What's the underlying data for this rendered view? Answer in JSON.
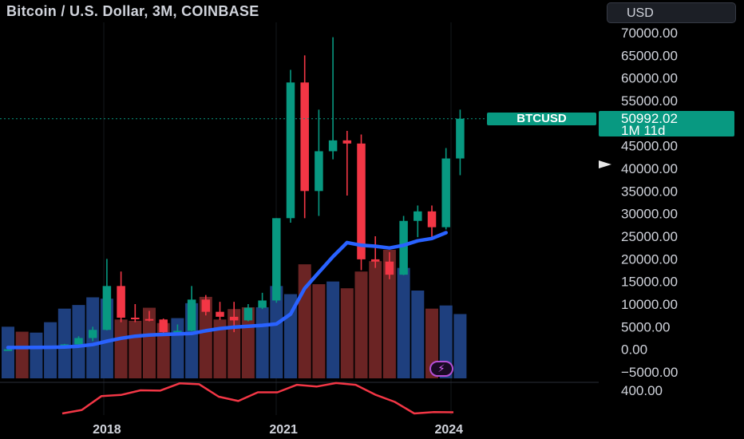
{
  "header": {
    "title": "Bitcoin / U.S. Dollar, 3M, COINBASE",
    "currency": "USD"
  },
  "last_price": {
    "ticker": "BTCUSD",
    "price": "50992.02",
    "countdown": "1M 11d"
  },
  "colors": {
    "up": "#089981",
    "down": "#f23645",
    "ma": "#2962ff",
    "indicator": "#f23645",
    "vol_up": "#1e3f7e",
    "vol_down": "#6b2424"
  },
  "chart_data": [
    {
      "type": "candlestick",
      "ylim": [
        -5000,
        70000
      ],
      "y_ticks": [
        "70000.00",
        "65000.00",
        "60000.00",
        "55000.00",
        "50000.00",
        "45000.00",
        "40000.00",
        "35000.00",
        "30000.00",
        "25000.00",
        "20000.00",
        "15000.00",
        "10000.00",
        "5000.00",
        "0.00",
        "−5000.00"
      ],
      "x_tick_labels": [
        "2018",
        "2021",
        "2024"
      ],
      "candles": [
        {
          "o": 0,
          "h": 0,
          "l": 0,
          "c": 0
        },
        {
          "o": 200,
          "h": 260,
          "l": 180,
          "c": 450
        },
        {
          "o": 430,
          "h": 450,
          "l": 420,
          "c": 560
        },
        {
          "o": 600,
          "h": 800,
          "l": 420,
          "c": 700
        },
        {
          "o": 700,
          "h": 1200,
          "l": 600,
          "c": 1100
        },
        {
          "o": 1100,
          "h": 2900,
          "l": 900,
          "c": 2500
        },
        {
          "o": 2500,
          "h": 5000,
          "l": 1800,
          "c": 4300
        },
        {
          "o": 4300,
          "h": 20000,
          "l": 4200,
          "c": 14000
        },
        {
          "o": 14000,
          "h": 17200,
          "l": 6000,
          "c": 7000
        },
        {
          "o": 7000,
          "h": 10000,
          "l": 6000,
          "c": 6700
        },
        {
          "o": 6700,
          "h": 8500,
          "l": 6200,
          "c": 6600
        },
        {
          "o": 6600,
          "h": 6800,
          "l": 3200,
          "c": 3800
        },
        {
          "o": 3800,
          "h": 5500,
          "l": 3500,
          "c": 4100
        },
        {
          "o": 4100,
          "h": 14000,
          "l": 4000,
          "c": 11000
        },
        {
          "o": 11000,
          "h": 12000,
          "l": 7500,
          "c": 8300
        },
        {
          "o": 8300,
          "h": 10500,
          "l": 6500,
          "c": 7200
        },
        {
          "o": 7200,
          "h": 10500,
          "l": 3800,
          "c": 6400
        },
        {
          "o": 6400,
          "h": 10000,
          "l": 6200,
          "c": 9200
        },
        {
          "o": 9200,
          "h": 12500,
          "l": 8900,
          "c": 10800
        },
        {
          "o": 10800,
          "h": 29000,
          "l": 10300,
          "c": 29000
        },
        {
          "o": 29000,
          "h": 61800,
          "l": 28000,
          "c": 59000
        },
        {
          "o": 59000,
          "h": 65000,
          "l": 29000,
          "c": 35000
        },
        {
          "o": 35000,
          "h": 53000,
          "l": 29500,
          "c": 43800
        },
        {
          "o": 43800,
          "h": 69000,
          "l": 42000,
          "c": 46200
        },
        {
          "o": 46200,
          "h": 48300,
          "l": 34000,
          "c": 45500
        },
        {
          "o": 45500,
          "h": 47500,
          "l": 17500,
          "c": 19900
        },
        {
          "o": 19900,
          "h": 25000,
          "l": 18000,
          "c": 19400
        },
        {
          "o": 19400,
          "h": 21500,
          "l": 15500,
          "c": 16500
        },
        {
          "o": 16500,
          "h": 29500,
          "l": 16400,
          "c": 28400
        },
        {
          "o": 28400,
          "h": 31800,
          "l": 24800,
          "c": 30500
        },
        {
          "o": 30500,
          "h": 31800,
          "l": 24800,
          "c": 27000
        },
        {
          "o": 27000,
          "h": 44500,
          "l": 26500,
          "c": 42200
        },
        {
          "o": 42200,
          "h": 53000,
          "l": 38500,
          "c": 50992
        }
      ],
      "moving_average": [
        400,
        400,
        420,
        450,
        520,
        700,
        1050,
        1800,
        2450,
        2900,
        3150,
        3300,
        3400,
        3500,
        4100,
        4600,
        4900,
        5100,
        5300,
        5600,
        7800,
        13500,
        17000,
        20500,
        23600,
        23000,
        22800,
        22400,
        23000,
        24000,
        24500,
        25800
      ],
      "volume": [
        {
          "v": 5000,
          "dir": "up"
        },
        {
          "v": 3900,
          "dir": "down"
        },
        {
          "v": 3700,
          "dir": "up"
        },
        {
          "v": 6000,
          "dir": "up"
        },
        {
          "v": 9000,
          "dir": "up"
        },
        {
          "v": 9800,
          "dir": "up"
        },
        {
          "v": 11500,
          "dir": "up"
        },
        {
          "v": 11200,
          "dir": "up"
        },
        {
          "v": 6600,
          "dir": "down"
        },
        {
          "v": 6300,
          "dir": "down"
        },
        {
          "v": 9200,
          "dir": "down"
        },
        {
          "v": 5800,
          "dir": "down"
        },
        {
          "v": 6900,
          "dir": "up"
        },
        {
          "v": 10200,
          "dir": "up"
        },
        {
          "v": 11600,
          "dir": "down"
        },
        {
          "v": 6600,
          "dir": "down"
        },
        {
          "v": 8900,
          "dir": "down"
        },
        {
          "v": 9300,
          "dir": "down"
        },
        {
          "v": 9300,
          "dir": "up"
        },
        {
          "v": 14000,
          "dir": "up"
        },
        {
          "v": 12200,
          "dir": "up"
        },
        {
          "v": 18800,
          "dir": "down"
        },
        {
          "v": 14400,
          "dir": "down"
        },
        {
          "v": 15000,
          "dir": "up"
        },
        {
          "v": 13500,
          "dir": "down"
        },
        {
          "v": 17200,
          "dir": "down"
        },
        {
          "v": 19500,
          "dir": "down"
        },
        {
          "v": 22000,
          "dir": "down"
        },
        {
          "v": 18000,
          "dir": "up"
        },
        {
          "v": 13000,
          "dir": "up"
        },
        {
          "v": 9000,
          "dir": "down"
        },
        {
          "v": 9700,
          "dir": "up"
        },
        {
          "v": 7800,
          "dir": "up"
        }
      ]
    },
    {
      "type": "line",
      "y_ticks": [
        "400.00"
      ],
      "values": [
        0,
        60,
        300,
        320,
        400,
        395,
        520,
        505,
        290,
        215,
        365,
        365,
        495,
        465,
        525,
        495,
        325,
        200,
        0,
        25,
        20
      ]
    }
  ]
}
